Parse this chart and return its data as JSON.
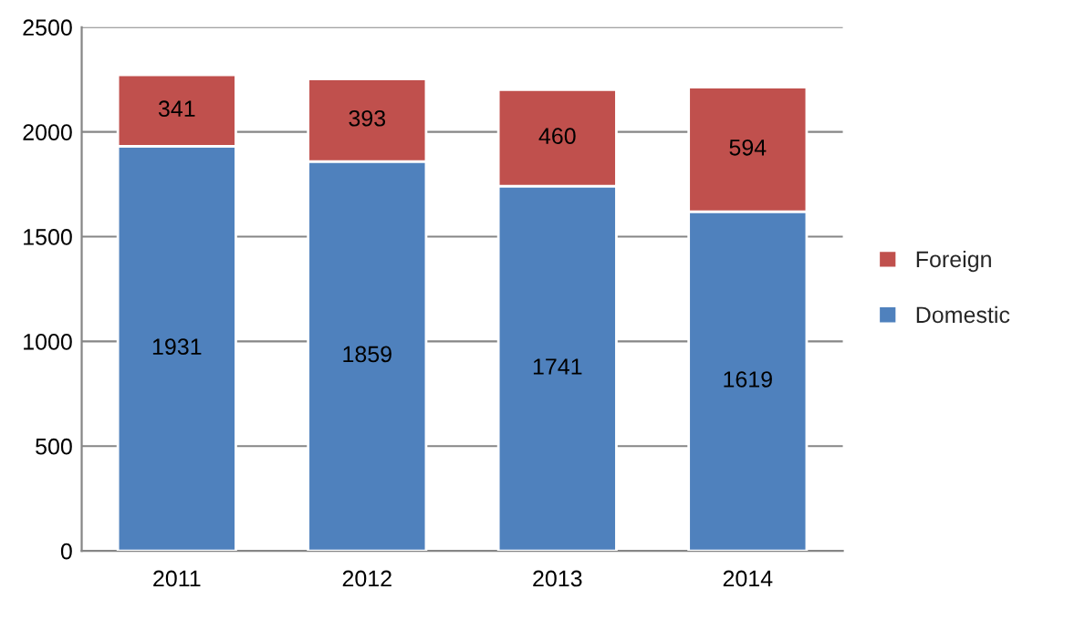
{
  "chart_data": {
    "type": "bar",
    "stacked": true,
    "categories": [
      "2011",
      "2012",
      "2013",
      "2014"
    ],
    "series": [
      {
        "name": "Domestic",
        "color": "#4f81bd",
        "values": [
          1931,
          1859,
          1741,
          1619
        ]
      },
      {
        "name": "Foreign",
        "color": "#c0504d",
        "values": [
          341,
          393,
          460,
          594
        ]
      }
    ],
    "ylim": [
      0,
      2500
    ],
    "yticks": [
      0,
      500,
      1000,
      1500,
      2000,
      2500
    ],
    "grid": "y",
    "legend": "right",
    "data_labels": true
  }
}
